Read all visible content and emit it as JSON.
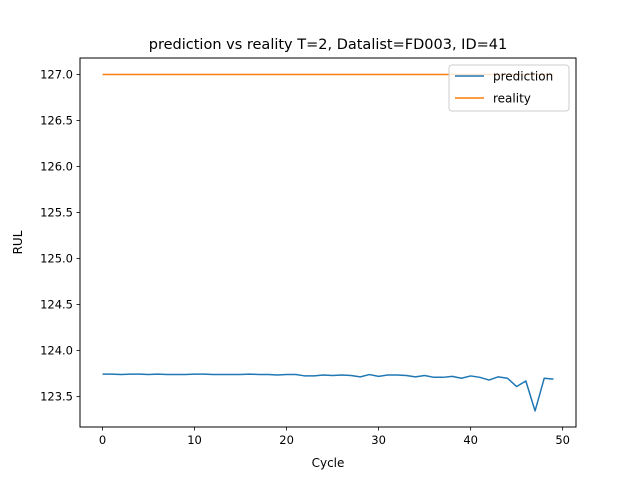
{
  "chart_data": {
    "type": "line",
    "title": "prediction vs reality T=2, Datalist=FD003, ID=41",
    "xlabel": "Cycle",
    "ylabel": "RUL",
    "xlim": [
      -2.45,
      51.45
    ],
    "ylim": [
      123.17,
      127.18
    ],
    "xticks": [
      0,
      10,
      20,
      30,
      40,
      50
    ],
    "xtick_labels": [
      "0",
      "10",
      "20",
      "30",
      "40",
      "50"
    ],
    "yticks": [
      123.5,
      124.0,
      124.5,
      125.0,
      125.5,
      126.0,
      126.5,
      127.0
    ],
    "ytick_labels": [
      "123.5",
      "124.0",
      "124.5",
      "125.0",
      "125.5",
      "126.0",
      "126.5",
      "127.0"
    ],
    "grid": false,
    "legend_position": "upper right",
    "series": [
      {
        "name": "prediction",
        "color": "#1f77b4",
        "x": [
          0,
          1,
          2,
          3,
          4,
          5,
          6,
          7,
          8,
          9,
          10,
          11,
          12,
          13,
          14,
          15,
          16,
          17,
          18,
          19,
          20,
          21,
          22,
          23,
          24,
          25,
          26,
          27,
          28,
          29,
          30,
          31,
          32,
          33,
          34,
          35,
          36,
          37,
          38,
          39,
          40,
          41,
          42,
          43,
          44,
          45,
          46,
          47,
          48,
          49
        ],
        "y": [
          123.745,
          123.745,
          123.74,
          123.745,
          123.745,
          123.74,
          123.745,
          123.74,
          123.74,
          123.74,
          123.745,
          123.745,
          123.74,
          123.74,
          123.74,
          123.74,
          123.745,
          123.74,
          123.74,
          123.735,
          123.74,
          123.74,
          123.725,
          123.725,
          123.735,
          123.73,
          123.735,
          123.73,
          123.715,
          123.74,
          123.72,
          123.735,
          123.735,
          123.73,
          123.715,
          123.73,
          123.71,
          123.71,
          123.72,
          123.7,
          123.725,
          123.71,
          123.68,
          123.715,
          123.7,
          123.61,
          123.67,
          123.345,
          123.7,
          123.69
        ]
      },
      {
        "name": "reality",
        "color": "#ff7f0e",
        "x": [
          0,
          1,
          2,
          3,
          4,
          5,
          6,
          7,
          8,
          9,
          10,
          11,
          12,
          13,
          14,
          15,
          16,
          17,
          18,
          19,
          20,
          21,
          22,
          23,
          24,
          25,
          26,
          27,
          28,
          29,
          30,
          31,
          32,
          33,
          34,
          35,
          36,
          37,
          38,
          39,
          40,
          41,
          42,
          43,
          44,
          45,
          46,
          47,
          48,
          49
        ],
        "y": [
          127,
          127,
          127,
          127,
          127,
          127,
          127,
          127,
          127,
          127,
          127,
          127,
          127,
          127,
          127,
          127,
          127,
          127,
          127,
          127,
          127,
          127,
          127,
          127,
          127,
          127,
          127,
          127,
          127,
          127,
          127,
          127,
          127,
          127,
          127,
          127,
          127,
          127,
          127,
          127,
          127,
          127,
          127,
          127,
          127,
          127,
          127,
          127,
          127,
          127
        ]
      }
    ]
  }
}
